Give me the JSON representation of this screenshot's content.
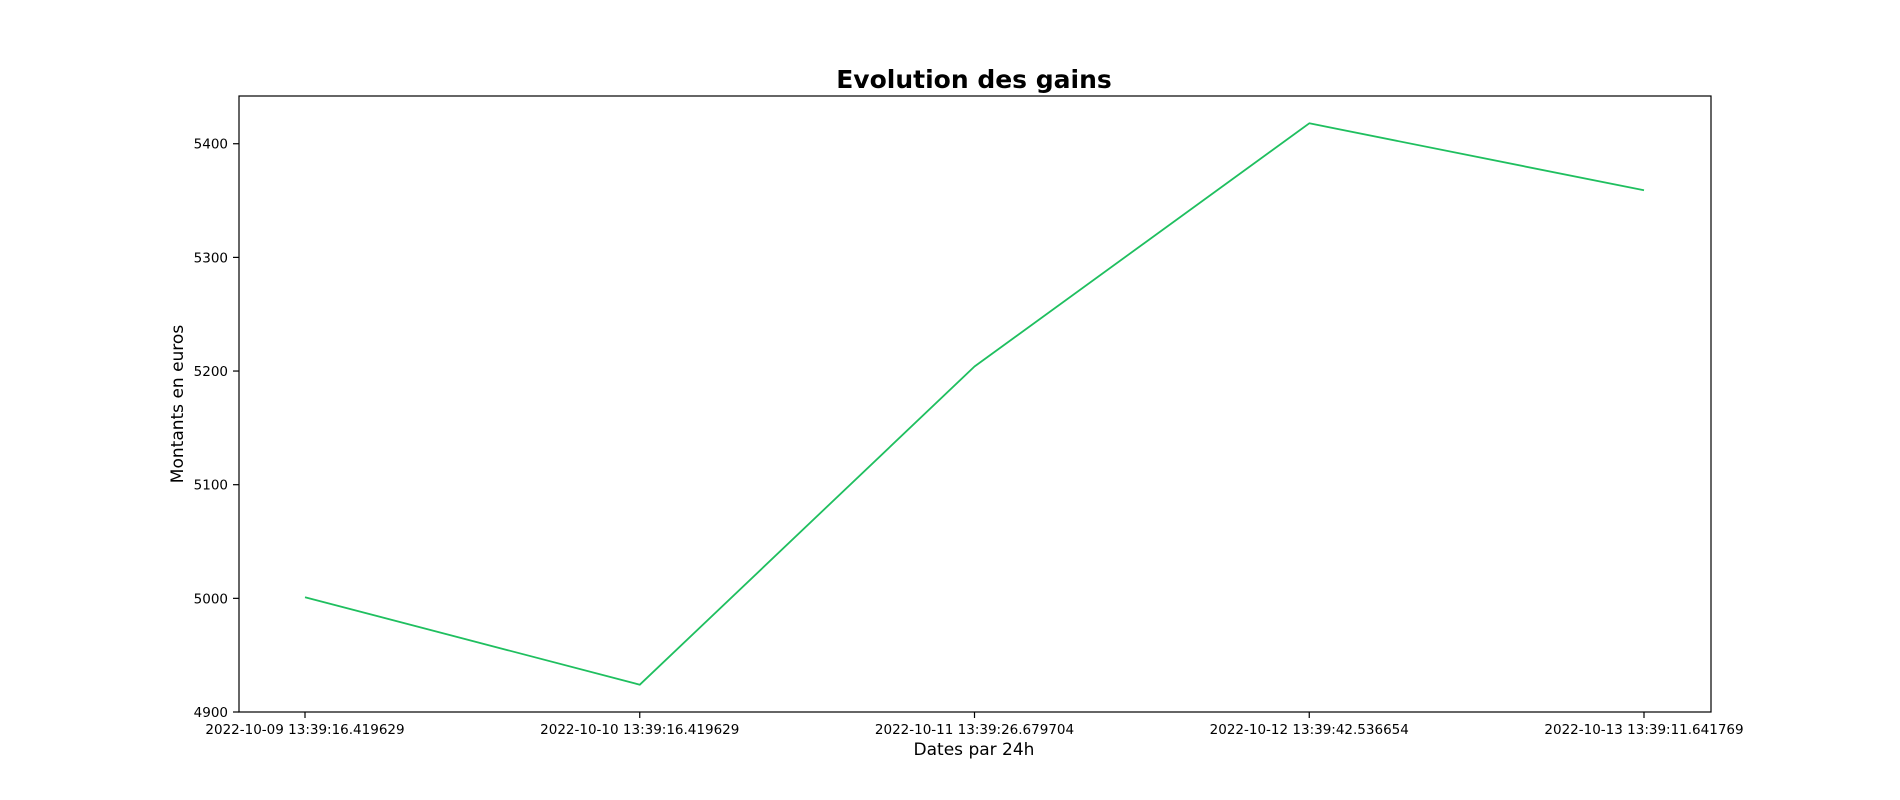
{
  "chart_data": {
    "type": "line",
    "title": "Evolution des gains",
    "xlabel": "Dates par 24h",
    "ylabel": "Montants en euros",
    "x": [
      "2022-10-09 13:39:16.419629",
      "2022-10-10 13:39:16.419629",
      "2022-10-11 13:39:26.679704",
      "2022-10-12 13:39:42.536654",
      "2022-10-13 13:39:11.641769"
    ],
    "series": [
      {
        "values": [
          5001,
          4924,
          5204,
          5418,
          5359
        ],
        "color": "#1fbf5f"
      }
    ],
    "yticks": [
      4900,
      5000,
      5100,
      5200,
      5300,
      5400
    ],
    "ylim": [
      4900,
      5442
    ],
    "grid": false,
    "legend": "none"
  }
}
